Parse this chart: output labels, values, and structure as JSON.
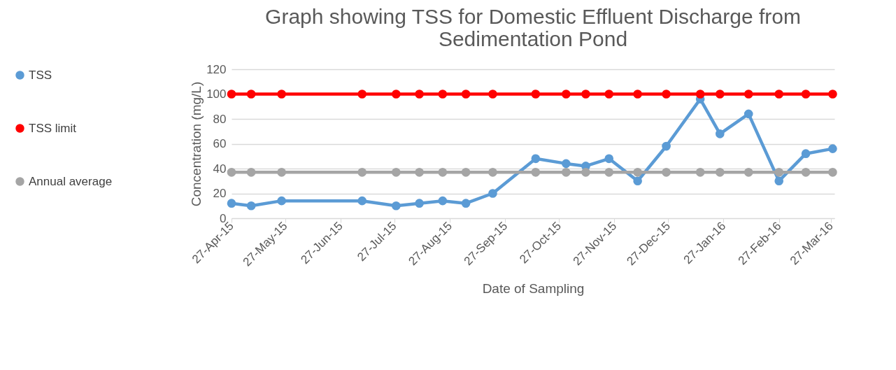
{
  "chart_data": {
    "type": "line",
    "title": "Graph showing TSS for Domestic Effluent Discharge  from Sedimentation Pond",
    "xlabel": "Date of Sampling",
    "ylabel": "Concentration (mg/L)",
    "x": [
      "2015-04-27",
      "2015-05-08",
      "2015-05-25",
      "2015-07-09",
      "2015-07-28",
      "2015-08-10",
      "2015-08-23",
      "2015-09-05",
      "2015-09-20",
      "2015-10-14",
      "2015-10-31",
      "2015-11-11",
      "2015-11-24",
      "2015-12-10",
      "2015-12-26",
      "2016-01-14",
      "2016-01-25",
      "2016-02-10",
      "2016-02-27",
      "2016-03-13",
      "2016-03-28"
    ],
    "series": [
      {
        "name": "TSS",
        "color": "#5b9bd5",
        "values": [
          12,
          10,
          14,
          14,
          10,
          12,
          14,
          12,
          20,
          48,
          44,
          42,
          48,
          30,
          58,
          96,
          68,
          84,
          30,
          52,
          56
        ]
      },
      {
        "name": "TSS limit",
        "color": "#ff0000",
        "values": [
          100,
          100,
          100,
          100,
          100,
          100,
          100,
          100,
          100,
          100,
          100,
          100,
          100,
          100,
          100,
          100,
          100,
          100,
          100,
          100,
          100
        ]
      },
      {
        "name": "Annual average",
        "color": "#a5a5a5",
        "values": [
          37,
          37,
          37,
          37,
          37,
          37,
          37,
          37,
          37,
          37,
          37,
          37,
          37,
          37,
          37,
          37,
          37,
          37,
          37,
          37,
          37
        ]
      }
    ],
    "xlim": [
      "2015-04-27",
      "2016-03-29"
    ],
    "xticks": [
      {
        "value": "2015-04-27",
        "label": "27-Apr-15"
      },
      {
        "value": "2015-05-27",
        "label": "27-May-15"
      },
      {
        "value": "2015-06-27",
        "label": "27-Jun-15"
      },
      {
        "value": "2015-07-27",
        "label": "27-Jul-15"
      },
      {
        "value": "2015-08-27",
        "label": "27-Aug-15"
      },
      {
        "value": "2015-09-27",
        "label": "27-Sep-15"
      },
      {
        "value": "2015-10-27",
        "label": "27-Oct-15"
      },
      {
        "value": "2015-11-27",
        "label": "27-Nov-15"
      },
      {
        "value": "2015-12-27",
        "label": "27-Dec-15"
      },
      {
        "value": "2016-01-27",
        "label": "27-Jan-16"
      },
      {
        "value": "2016-02-27",
        "label": "27-Feb-16"
      },
      {
        "value": "2016-03-27",
        "label": "27-Mar-16"
      }
    ],
    "ylim": [
      0,
      120
    ],
    "yticks": [
      0,
      20,
      40,
      60,
      80,
      100,
      120
    ],
    "grid": "y",
    "legend": "left",
    "marker": "circle",
    "line_style": "solid"
  }
}
